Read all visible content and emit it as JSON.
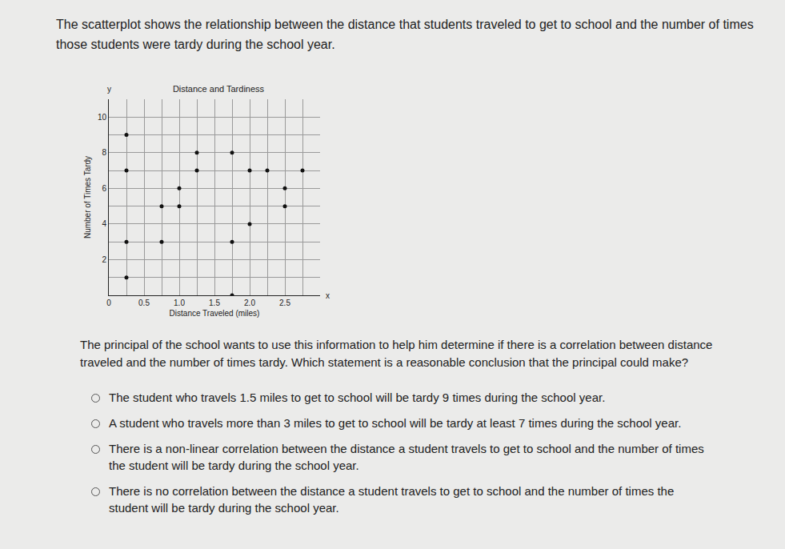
{
  "intro": "The scatterplot shows the relationship between the distance that students traveled to get to school and the number of times those students were tardy during the school year.",
  "chart_data": {
    "type": "scatter",
    "title": "Distance and Tardiness",
    "x_label": "Distance Traveled (miles)",
    "y_label": "Number of Times Tardy",
    "axis_symbols": {
      "x": "x",
      "y": "y"
    },
    "x": [
      0.25,
      0.25,
      0.25,
      0.25,
      0.75,
      0.75,
      1.0,
      1.0,
      1.25,
      1.25,
      1.75,
      1.75,
      1.75,
      2.0,
      2.0,
      2.25,
      2.5,
      2.5,
      2.75
    ],
    "values": [
      9,
      7,
      3,
      1,
      3,
      5,
      5,
      6,
      8,
      7,
      8,
      3,
      0,
      7,
      4,
      7,
      6,
      5,
      7
    ],
    "color": "#111111",
    "marker": "circle",
    "xlim": [
      0,
      3
    ],
    "ylim": [
      0,
      11
    ],
    "xticks": [
      0,
      0.5,
      {
        "value": 1,
        "label": "1.0"
      },
      1.5,
      {
        "value": 2,
        "label": "2.0"
      },
      2.5
    ],
    "yticks": [
      2,
      4,
      6,
      8,
      10
    ],
    "grid": true
  },
  "question": "The principal of the school wants to use this information to help him determine if there is a correlation between distance traveled and the number of times tardy. Which statement is a reasonable conclusion that the principal could make?",
  "options": [
    "The student who travels 1.5 miles to get to school will be tardy 9 times during the school year.",
    "A student who travels more than 3 miles to get to school will be tardy at least 7 times during the school year.",
    "There is a non-linear correlation between the distance a student travels to get to school and the number of times the student will be tardy during the school year.",
    "There is no correlation between the distance a student travels to get to school and the number of times the student will be tardy during the school year."
  ]
}
